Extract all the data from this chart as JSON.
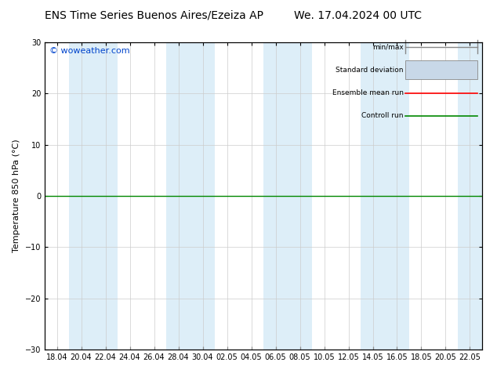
{
  "title_left": "ENS Time Series Buenos Aires/Ezeiza AP",
  "title_right": "We. 17.04.2024 00 UTC",
  "ylabel": "Temperature 850 hPa (°C)",
  "ylim": [
    -30,
    30
  ],
  "yticks": [
    -30,
    -20,
    -10,
    0,
    10,
    20,
    30
  ],
  "x_tick_labels": [
    "18.04",
    "20.04",
    "22.04",
    "24.04",
    "26.04",
    "28.04",
    "30.04",
    "02.05",
    "04.05",
    "06.05",
    "08.05",
    "10.05",
    "12.05",
    "14.05",
    "16.05",
    "18.05",
    "20.05",
    "22.05"
  ],
  "watermark": "© woweather.com",
  "bg_color": "#ffffff",
  "plot_bg_color": "#ffffff",
  "shaded_band_color": "#ddeef8",
  "legend_entries": [
    "min/max",
    "Standard deviation",
    "Ensemble mean run",
    "Controll run"
  ],
  "legend_line_colors": [
    "#888888",
    "#bbccdd",
    "#ff0000",
    "#008800"
  ],
  "zero_line_color": "#008800",
  "title_fontsize": 10,
  "tick_fontsize": 7,
  "ylabel_fontsize": 8,
  "watermark_color": "#0044cc"
}
